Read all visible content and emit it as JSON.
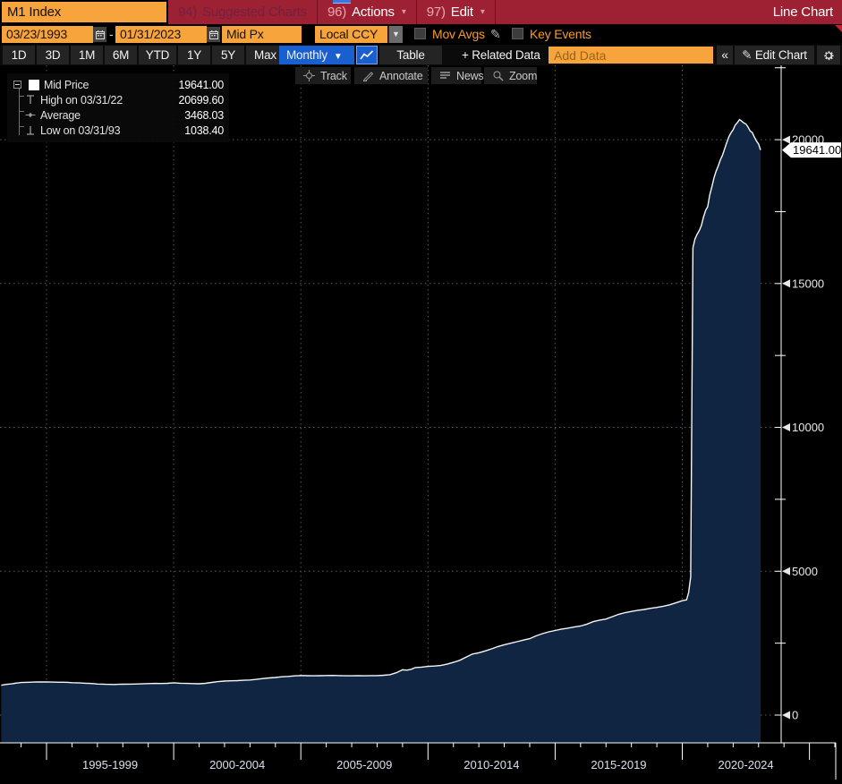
{
  "topbar": {
    "ticker_input": "M1 Index",
    "menu_items": [
      {
        "num": "94)",
        "label": "Suggested Charts",
        "disabled": true,
        "caret": false
      },
      {
        "num": "96)",
        "label": "Actions",
        "disabled": false,
        "caret": true
      },
      {
        "num": "97)",
        "label": "Edit",
        "disabled": false,
        "caret": true
      }
    ],
    "right_label": "Line Chart"
  },
  "settings_bar": {
    "date_from": "03/23/1993",
    "date_separator": "-",
    "date_to": "01/31/2023",
    "field": "Mid Px",
    "currency": "Local CCY",
    "mov_avgs_label": "Mov Avgs",
    "key_events_label": "Key Events"
  },
  "toolbar": {
    "ranges": [
      "1D",
      "3D",
      "1M",
      "6M",
      "YTD",
      "1Y",
      "5Y",
      "Max"
    ],
    "period": "Monthly",
    "table_label": "Table",
    "related_data_label": "+ Related Data",
    "add_data_placeholder": "Add Data",
    "edit_chart_label": "Edit Chart"
  },
  "chart_tools": [
    {
      "icon": "crosshair-icon",
      "label": "Track"
    },
    {
      "icon": "pencil-icon",
      "label": "Annotate"
    },
    {
      "icon": "news-icon",
      "label": "News"
    },
    {
      "icon": "magnifier-icon",
      "label": "Zoom"
    }
  ],
  "legend": {
    "rows": [
      {
        "icon": "series-swatch",
        "label": "Mid Price",
        "value": "19641.00"
      },
      {
        "icon": "high-marker",
        "label": "High on 03/31/22",
        "value": "20699.60"
      },
      {
        "icon": "average-marker",
        "label": "Average",
        "value": "3468.03"
      },
      {
        "icon": "low-marker",
        "label": "Low on 03/31/93",
        "value": "1038.40"
      }
    ]
  },
  "chart_data": {
    "type": "area",
    "title": "M1 Index",
    "x_range": [
      "03/23/1993",
      "01/31/2023"
    ],
    "ylim": [
      -965,
      23450
    ],
    "y_ticks_major": [
      0,
      5000,
      10000,
      15000,
      20000
    ],
    "y_ticks_minor": [
      2500,
      7500,
      12500,
      17500,
      22500
    ],
    "x_gridline_years": [
      1995,
      2000,
      2005,
      2010,
      2015,
      2020
    ],
    "x_separator_years": [
      1995,
      2000,
      2005,
      2010,
      2015,
      2020,
      2025
    ],
    "x_period_labels": [
      "1995-1999",
      "2000-2004",
      "2005-2009",
      "2010-2014",
      "2015-2019",
      "2020-2024"
    ],
    "last_price_label": "19641.00",
    "annotations": {
      "last": 19641.0,
      "high": {
        "date": "03/31/22",
        "value": 20699.6
      },
      "average": 3468.03,
      "low": {
        "date": "03/31/93",
        "value": 1038.4
      }
    },
    "legend_position": "top-left",
    "grid": true,
    "colors": {
      "line": "#f4f6f7",
      "fill": "#102541",
      "grid": "#565c64",
      "axis": "#ffffff",
      "tick_label": "#e8e8e8",
      "x_label": "#d9e0ea",
      "price_tag_bg": "#ffffff",
      "price_tag_text": "#000000",
      "amber": "#f6a43b",
      "menu_red": "#9e2133",
      "highlight_blue": "#1a5fd0",
      "fill_edge": "#102541"
    },
    "series": [
      {
        "name": "Mid Price",
        "points": [
          [
            1993.22,
            1035
          ],
          [
            1993.33,
            1055
          ],
          [
            1993.42,
            1066
          ],
          [
            1993.5,
            1075
          ],
          [
            1993.58,
            1083
          ],
          [
            1993.67,
            1092
          ],
          [
            1993.75,
            1105
          ],
          [
            1993.83,
            1113
          ],
          [
            1993.92,
            1124
          ],
          [
            1994,
            1131
          ],
          [
            1994.17,
            1138
          ],
          [
            1994.33,
            1143
          ],
          [
            1994.5,
            1147
          ],
          [
            1994.67,
            1150
          ],
          [
            1994.83,
            1151
          ],
          [
            1995,
            1151
          ],
          [
            1995.17,
            1149
          ],
          [
            1995.33,
            1146
          ],
          [
            1995.5,
            1143
          ],
          [
            1995.67,
            1141
          ],
          [
            1995.83,
            1138
          ],
          [
            1996,
            1127
          ],
          [
            1996.17,
            1122
          ],
          [
            1996.33,
            1117
          ],
          [
            1996.5,
            1109
          ],
          [
            1996.67,
            1102
          ],
          [
            1996.83,
            1096
          ],
          [
            1997,
            1081
          ],
          [
            1997.17,
            1075
          ],
          [
            1997.33,
            1070
          ],
          [
            1997.5,
            1066
          ],
          [
            1997.67,
            1065
          ],
          [
            1997.83,
            1069
          ],
          [
            1998,
            1073
          ],
          [
            1998.25,
            1076
          ],
          [
            1998.5,
            1078
          ],
          [
            1998.75,
            1085
          ],
          [
            1999,
            1095
          ],
          [
            1999.25,
            1100
          ],
          [
            1999.5,
            1098
          ],
          [
            1999.75,
            1104
          ],
          [
            2000,
            1122
          ],
          [
            2000.25,
            1108
          ],
          [
            2000.5,
            1102
          ],
          [
            2000.75,
            1095
          ],
          [
            2001,
            1088
          ],
          [
            2001.25,
            1104
          ],
          [
            2001.5,
            1136
          ],
          [
            2001.75,
            1162
          ],
          [
            2002,
            1183
          ],
          [
            2002.25,
            1190
          ],
          [
            2002.5,
            1198
          ],
          [
            2002.75,
            1210
          ],
          [
            2003,
            1220
          ],
          [
            2003.25,
            1240
          ],
          [
            2003.5,
            1268
          ],
          [
            2003.75,
            1290
          ],
          [
            2004,
            1306
          ],
          [
            2004.25,
            1330
          ],
          [
            2004.5,
            1344
          ],
          [
            2004.75,
            1362
          ],
          [
            2005,
            1376
          ],
          [
            2005.25,
            1368
          ],
          [
            2005.5,
            1365
          ],
          [
            2005.75,
            1370
          ],
          [
            2006,
            1375
          ],
          [
            2006.25,
            1379
          ],
          [
            2006.5,
            1371
          ],
          [
            2006.75,
            1366
          ],
          [
            2007,
            1366
          ],
          [
            2007.25,
            1369
          ],
          [
            2007.5,
            1367
          ],
          [
            2007.75,
            1371
          ],
          [
            2008,
            1373
          ],
          [
            2008.25,
            1385
          ],
          [
            2008.5,
            1402
          ],
          [
            2008.75,
            1472
          ],
          [
            2009,
            1575
          ],
          [
            2009.17,
            1562
          ],
          [
            2009.33,
            1590
          ],
          [
            2009.5,
            1652
          ],
          [
            2009.75,
            1666
          ],
          [
            2010,
            1693
          ],
          [
            2010.25,
            1706
          ],
          [
            2010.5,
            1722
          ],
          [
            2010.75,
            1770
          ],
          [
            2011,
            1832
          ],
          [
            2011.25,
            1905
          ],
          [
            2011.5,
            2012
          ],
          [
            2011.75,
            2122
          ],
          [
            2012,
            2164
          ],
          [
            2012.25,
            2232
          ],
          [
            2012.5,
            2302
          ],
          [
            2012.75,
            2382
          ],
          [
            2013,
            2446
          ],
          [
            2013.25,
            2498
          ],
          [
            2013.5,
            2552
          ],
          [
            2013.75,
            2608
          ],
          [
            2014,
            2657
          ],
          [
            2014.25,
            2752
          ],
          [
            2014.5,
            2832
          ],
          [
            2014.75,
            2892
          ],
          [
            2015,
            2940
          ],
          [
            2015.25,
            2988
          ],
          [
            2015.5,
            3022
          ],
          [
            2015.75,
            3062
          ],
          [
            2016,
            3094
          ],
          [
            2016.25,
            3162
          ],
          [
            2016.5,
            3248
          ],
          [
            2016.75,
            3302
          ],
          [
            2017,
            3339
          ],
          [
            2017.25,
            3422
          ],
          [
            2017.5,
            3502
          ],
          [
            2017.75,
            3562
          ],
          [
            2018,
            3601
          ],
          [
            2018.25,
            3642
          ],
          [
            2018.5,
            3672
          ],
          [
            2018.75,
            3712
          ],
          [
            2019,
            3743
          ],
          [
            2019.25,
            3782
          ],
          [
            2019.5,
            3832
          ],
          [
            2019.75,
            3902
          ],
          [
            2020,
            3977
          ],
          [
            2020.08,
            3990
          ],
          [
            2020.17,
            4003
          ],
          [
            2020.25,
            4261
          ],
          [
            2020.33,
            4800
          ],
          [
            2020.42,
            16242
          ],
          [
            2020.5,
            16550
          ],
          [
            2020.58,
            16705
          ],
          [
            2020.67,
            16848
          ],
          [
            2020.75,
            17010
          ],
          [
            2020.83,
            17296
          ],
          [
            2020.92,
            17550
          ],
          [
            2021,
            17669
          ],
          [
            2021.08,
            18080
          ],
          [
            2021.17,
            18390
          ],
          [
            2021.25,
            18680
          ],
          [
            2021.33,
            18905
          ],
          [
            2021.42,
            19105
          ],
          [
            2021.5,
            19302
          ],
          [
            2021.58,
            19455
          ],
          [
            2021.67,
            19698
          ],
          [
            2021.75,
            19900
          ],
          [
            2021.83,
            20096
          ],
          [
            2021.92,
            20248
          ],
          [
            2022,
            20345
          ],
          [
            2022.08,
            20502
          ],
          [
            2022.17,
            20600
          ],
          [
            2022.25,
            20700
          ],
          [
            2022.33,
            20648
          ],
          [
            2022.42,
            20582
          ],
          [
            2022.5,
            20548
          ],
          [
            2022.58,
            20452
          ],
          [
            2022.67,
            20302
          ],
          [
            2022.75,
            20248
          ],
          [
            2022.83,
            20102
          ],
          [
            2022.92,
            19948
          ],
          [
            2023,
            19848
          ],
          [
            2023.08,
            19641
          ]
        ]
      }
    ]
  }
}
